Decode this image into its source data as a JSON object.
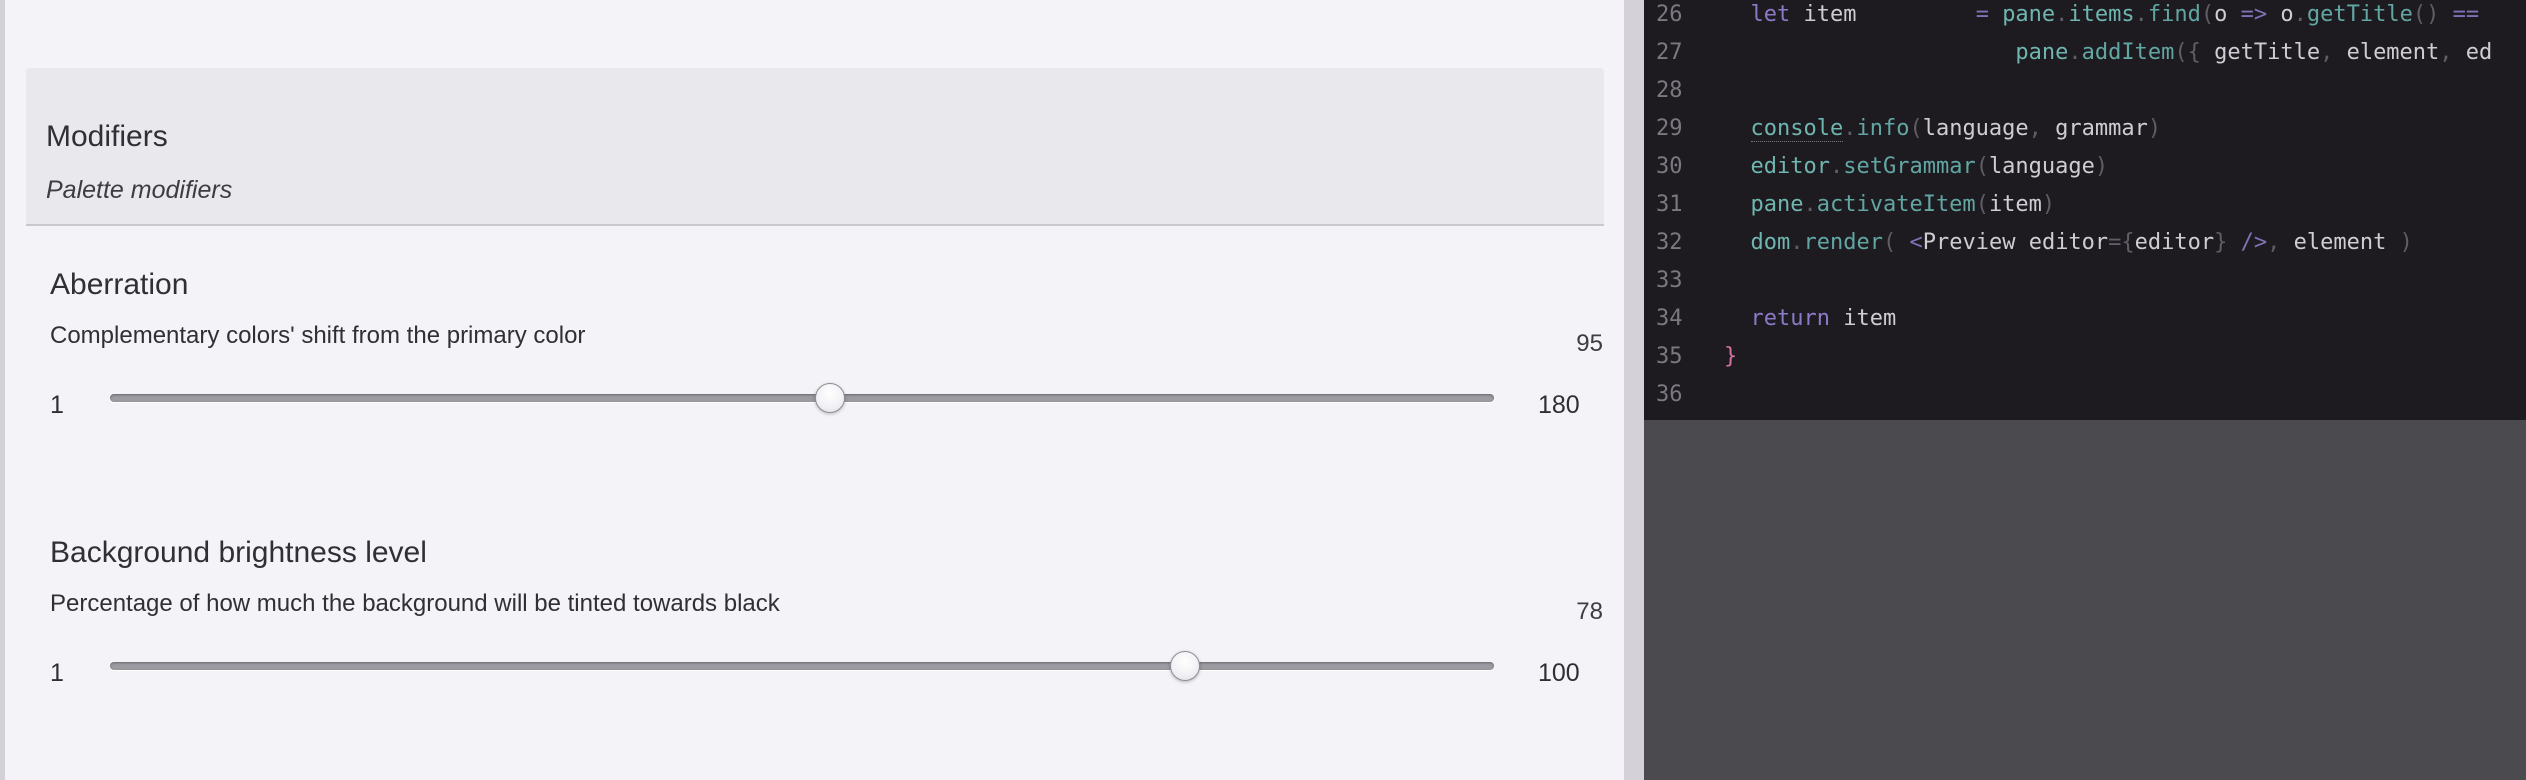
{
  "settings_panel": {
    "section": {
      "title": "Modifiers",
      "subtitle": "Palette modifiers"
    },
    "settings": [
      {
        "title": "Aberration",
        "description": "Complementary colors' shift from the primary color",
        "value": "95",
        "min": "1",
        "max": "180",
        "fraction": 0.52
      },
      {
        "title": "Background brightness level",
        "description": "Percentage of how much the background will be tinted towards black",
        "value": "78",
        "min": "1",
        "max": "100",
        "fraction": 0.777
      }
    ]
  },
  "editor": {
    "lines": [
      {
        "number": "26",
        "tokens": [
          {
            "t": "  ",
            "c": "ident"
          },
          {
            "t": "let",
            "c": "kw"
          },
          {
            "t": " item         ",
            "c": "ident"
          },
          {
            "t": "=",
            "c": "op"
          },
          {
            "t": " ",
            "c": "ident"
          },
          {
            "t": "pane",
            "c": "var"
          },
          {
            "t": ".",
            "c": "punct"
          },
          {
            "t": "items",
            "c": "var"
          },
          {
            "t": ".",
            "c": "punct"
          },
          {
            "t": "find",
            "c": "fn"
          },
          {
            "t": "(",
            "c": "punct"
          },
          {
            "t": "o",
            "c": "ident"
          },
          {
            "t": " => ",
            "c": "op"
          },
          {
            "t": "o",
            "c": "ident"
          },
          {
            "t": ".",
            "c": "punct"
          },
          {
            "t": "getTitle",
            "c": "fn"
          },
          {
            "t": "()",
            "c": "punct"
          },
          {
            "t": " ==",
            "c": "op"
          }
        ]
      },
      {
        "number": "27",
        "tokens": [
          {
            "t": "                      ",
            "c": "ident"
          },
          {
            "t": "pane",
            "c": "var"
          },
          {
            "t": ".",
            "c": "punct"
          },
          {
            "t": "addItem",
            "c": "fn"
          },
          {
            "t": "({",
            "c": "punct"
          },
          {
            "t": " getTitle",
            "c": "ident"
          },
          {
            "t": ",",
            "c": "punct"
          },
          {
            "t": " element",
            "c": "ident"
          },
          {
            "t": ",",
            "c": "punct"
          },
          {
            "t": " ed",
            "c": "ident"
          }
        ]
      },
      {
        "number": "28",
        "tokens": []
      },
      {
        "number": "29",
        "tokens": [
          {
            "t": "  ",
            "c": "ident"
          },
          {
            "t": "console",
            "c": "var",
            "u": true
          },
          {
            "t": ".",
            "c": "punct"
          },
          {
            "t": "info",
            "c": "fn"
          },
          {
            "t": "(",
            "c": "punct"
          },
          {
            "t": "language",
            "c": "ident"
          },
          {
            "t": ", ",
            "c": "punct"
          },
          {
            "t": "grammar",
            "c": "ident"
          },
          {
            "t": ")",
            "c": "punct"
          }
        ]
      },
      {
        "number": "30",
        "tokens": [
          {
            "t": "  ",
            "c": "ident"
          },
          {
            "t": "editor",
            "c": "var"
          },
          {
            "t": ".",
            "c": "punct"
          },
          {
            "t": "setGrammar",
            "c": "fn"
          },
          {
            "t": "(",
            "c": "punct"
          },
          {
            "t": "language",
            "c": "ident"
          },
          {
            "t": ")",
            "c": "punct"
          }
        ]
      },
      {
        "number": "31",
        "tokens": [
          {
            "t": "  ",
            "c": "ident"
          },
          {
            "t": "pane",
            "c": "var"
          },
          {
            "t": ".",
            "c": "punct"
          },
          {
            "t": "activateItem",
            "c": "fn"
          },
          {
            "t": "(",
            "c": "punct"
          },
          {
            "t": "item",
            "c": "ident"
          },
          {
            "t": ")",
            "c": "punct"
          }
        ]
      },
      {
        "number": "32",
        "tokens": [
          {
            "t": "  ",
            "c": "ident"
          },
          {
            "t": "dom",
            "c": "var"
          },
          {
            "t": ".",
            "c": "punct"
          },
          {
            "t": "render",
            "c": "fn"
          },
          {
            "t": "( ",
            "c": "punct"
          },
          {
            "t": "<",
            "c": "op"
          },
          {
            "t": "Preview",
            "c": "ident"
          },
          {
            "t": " editor",
            "c": "ident"
          },
          {
            "t": "={",
            "c": "punct"
          },
          {
            "t": "editor",
            "c": "ident"
          },
          {
            "t": "}",
            "c": "punct"
          },
          {
            "t": " />",
            "c": "op"
          },
          {
            "t": ", ",
            "c": "punct"
          },
          {
            "t": "element",
            "c": "ident"
          },
          {
            "t": " )",
            "c": "punct"
          }
        ]
      },
      {
        "number": "33",
        "tokens": []
      },
      {
        "number": "34",
        "tokens": [
          {
            "t": "  ",
            "c": "ident"
          },
          {
            "t": "return",
            "c": "kw"
          },
          {
            "t": " item",
            "c": "ident"
          }
        ]
      },
      {
        "number": "35",
        "tokens": [
          {
            "t": "}",
            "c": "brace"
          }
        ]
      },
      {
        "number": "36",
        "tokens": []
      }
    ]
  }
}
